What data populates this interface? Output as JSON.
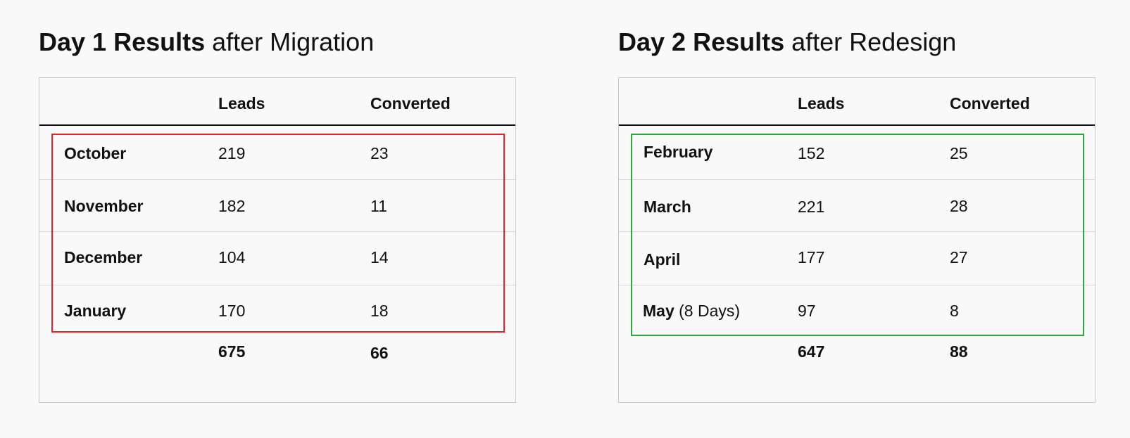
{
  "left_table": {
    "title_bold": "Day 1 Results",
    "title_light": "after Migration",
    "headers": {
      "month": "",
      "leads": "Leads",
      "converted": "Converted"
    },
    "rows": [
      {
        "month": "October",
        "note": "",
        "leads": "219",
        "converted": "23"
      },
      {
        "month": "November",
        "note": "",
        "leads": "182",
        "converted": "11"
      },
      {
        "month": "December",
        "note": "",
        "leads": "104",
        "converted": "14"
      },
      {
        "month": "January",
        "note": "",
        "leads": "170",
        "converted": "18"
      }
    ],
    "totals": {
      "leads": "675",
      "converted": "66"
    },
    "highlight_color": "#e0262b"
  },
  "right_table": {
    "title_bold": "Day 2 Results",
    "title_light": "after Redesign",
    "headers": {
      "month": "",
      "leads": "Leads",
      "converted": "Converted"
    },
    "rows": [
      {
        "month": "February",
        "note": "",
        "leads": "152",
        "converted": "25"
      },
      {
        "month": "March",
        "note": "",
        "leads": "221",
        "converted": "28"
      },
      {
        "month": "April",
        "note": "",
        "leads": "177",
        "converted": "27"
      },
      {
        "month": "May",
        "note": "(8 Days)",
        "leads": "97",
        "converted": "8"
      }
    ],
    "totals": {
      "leads": "647",
      "converted": "88"
    },
    "highlight_color": "#2ea83b"
  }
}
